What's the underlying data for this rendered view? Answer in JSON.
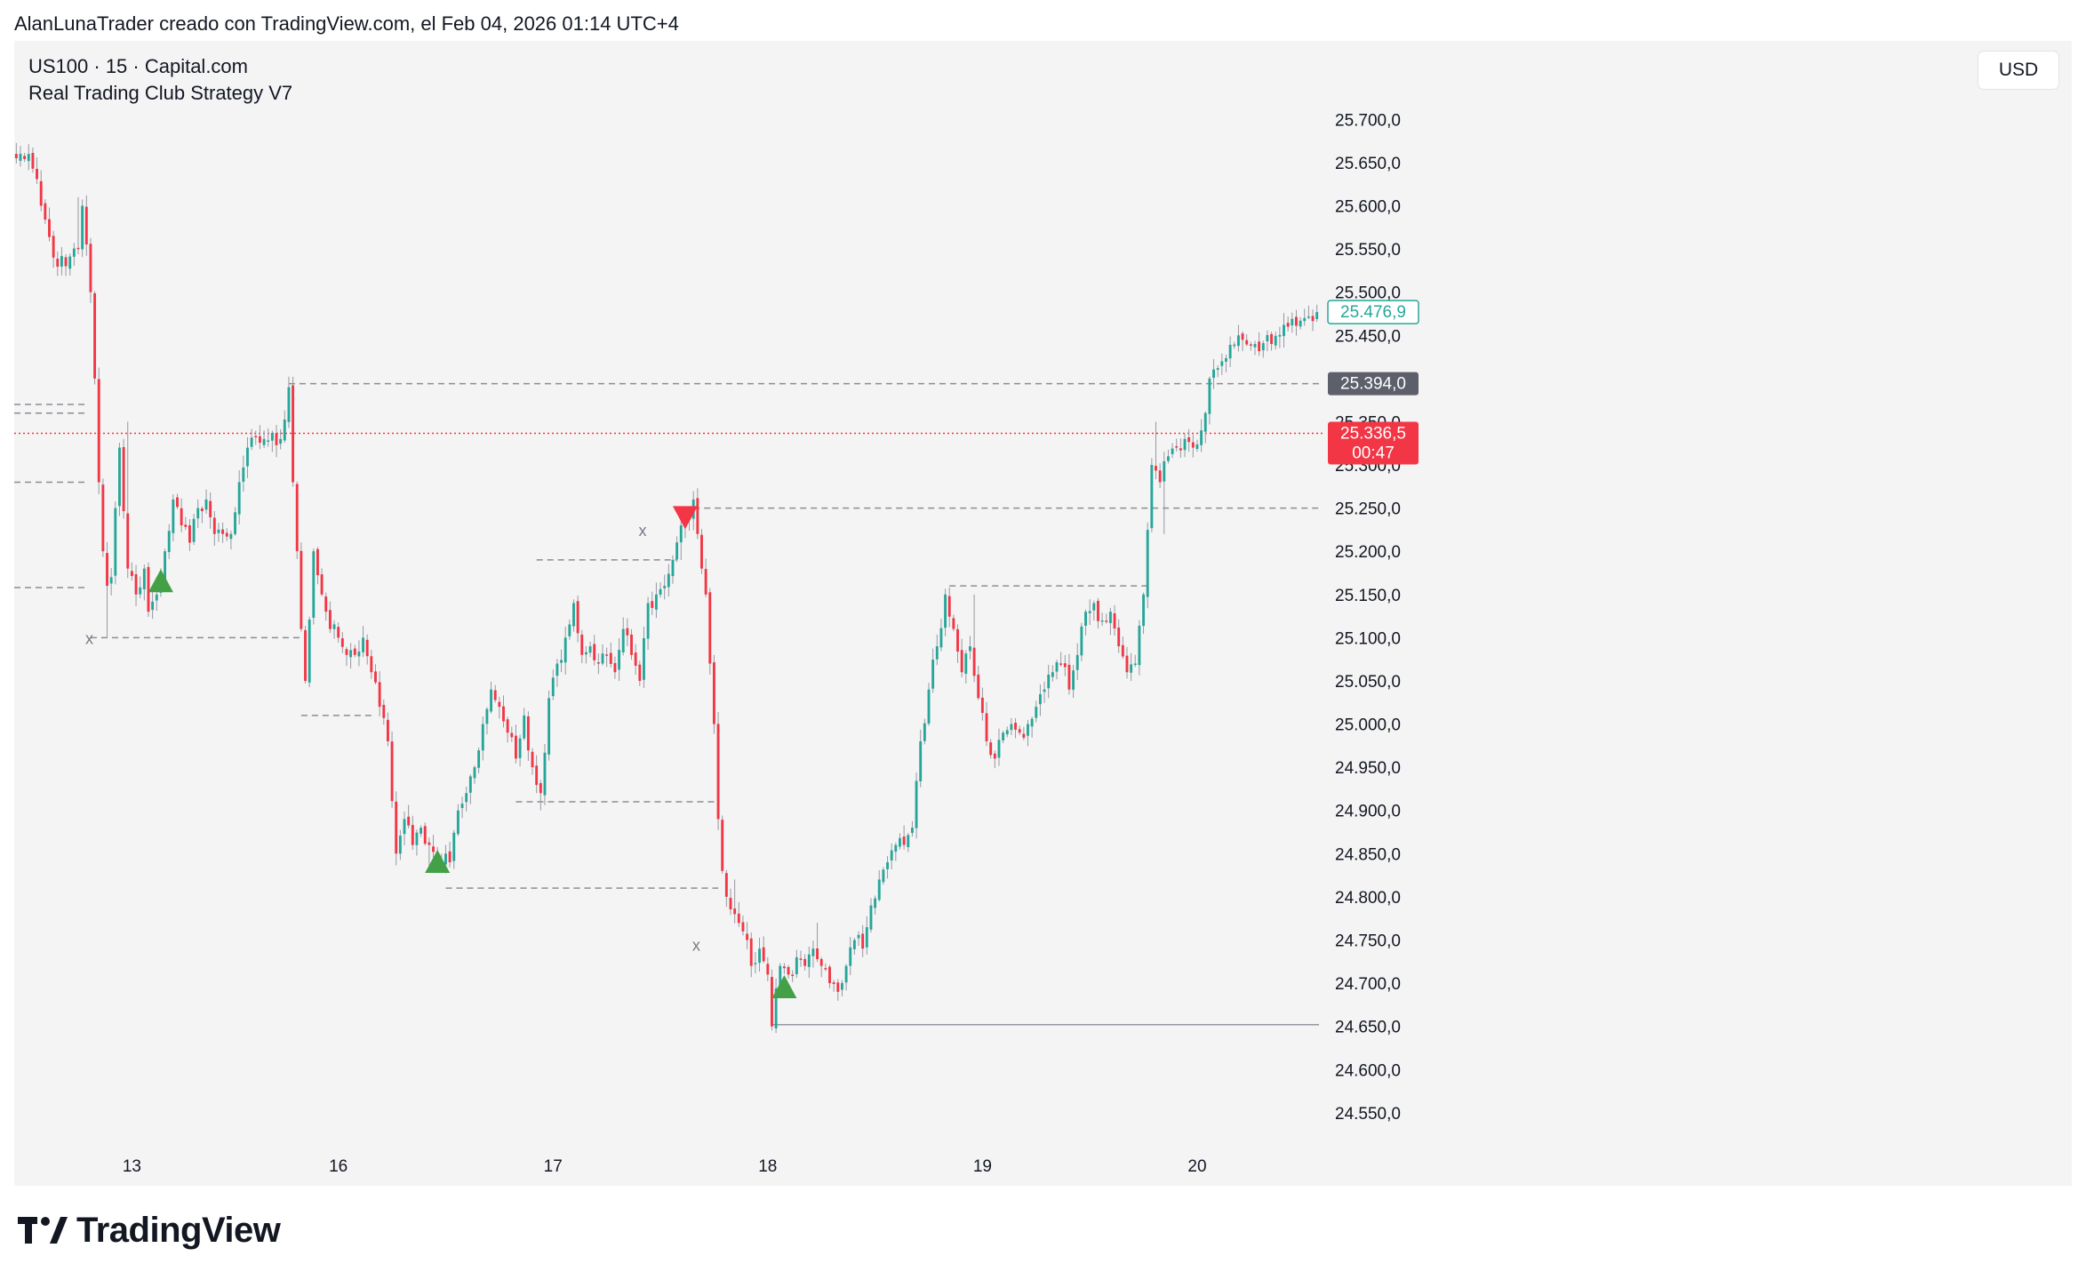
{
  "header": {
    "attribution": "AlanLunaTrader creado con TradingView.com, el Feb 04, 2026 01:14 UTC+4"
  },
  "legend": {
    "symbol": "US100 · 15 · Capital.com",
    "strategy": "Real Trading Club Strategy V7"
  },
  "currency": {
    "label": "USD"
  },
  "footer": {
    "brand": "TradingView",
    "logo_icon": "tradingview-logo-icon"
  },
  "colors": {
    "up": "#26a69a",
    "down": "#f23645",
    "background": "#f4f4f4",
    "last_price_box": "#f23645",
    "level_box": "#5d606b",
    "signal_up": "#43a047",
    "signal_down": "#f23645"
  },
  "chart_data": {
    "type": "candlestick",
    "x_ticks": [
      {
        "label": "13",
        "index": 28
      },
      {
        "label": "16",
        "index": 78
      },
      {
        "label": "17",
        "index": 130
      },
      {
        "label": "18",
        "index": 182
      },
      {
        "label": "19",
        "index": 234
      },
      {
        "label": "20",
        "index": 286
      }
    ],
    "y_ticks": [
      "25.700,0",
      "25.650,0",
      "25.600,0",
      "25.550,0",
      "25.500,0",
      "25.450,0",
      "25.400,0",
      "25.350,0",
      "25.300,0",
      "25.250,0",
      "25.200,0",
      "25.150,0",
      "25.100,0",
      "25.050,0",
      "25.000,0",
      "24.950,0",
      "24.900,0",
      "24.850,0",
      "24.800,0",
      "24.750,0",
      "24.700,0",
      "24.650,0",
      "24.600,0",
      "24.550,0"
    ],
    "y_tick_values": [
      25700,
      25650,
      25600,
      25550,
      25500,
      25450,
      25400,
      25350,
      25300,
      25250,
      25200,
      25150,
      25100,
      25050,
      25000,
      24950,
      24900,
      24850,
      24800,
      24750,
      24700,
      24650,
      24600,
      24550
    ],
    "y_range": [
      24520,
      25760
    ],
    "bars_count": 316,
    "close_anchors": [
      [
        0,
        25655
      ],
      [
        3,
        25660
      ],
      [
        6,
        25600
      ],
      [
        9,
        25540
      ],
      [
        12,
        25530
      ],
      [
        15,
        25550
      ],
      [
        16,
        25600
      ],
      [
        18,
        25500
      ],
      [
        19,
        25400
      ],
      [
        20,
        25280
      ],
      [
        21,
        25200
      ],
      [
        22,
        25160
      ],
      [
        23,
        25170
      ],
      [
        24,
        25250
      ],
      [
        25,
        25320
      ],
      [
        27,
        25180
      ],
      [
        29,
        25150
      ],
      [
        31,
        25180
      ],
      [
        32,
        25130
      ],
      [
        34,
        25150
      ],
      [
        36,
        25200
      ],
      [
        38,
        25260
      ],
      [
        40,
        25230
      ],
      [
        42,
        25210
      ],
      [
        44,
        25250
      ],
      [
        46,
        25260
      ],
      [
        48,
        25220
      ],
      [
        50,
        25220
      ],
      [
        52,
        25220
      ],
      [
        54,
        25280
      ],
      [
        56,
        25320
      ],
      [
        60,
        25330
      ],
      [
        64,
        25330
      ],
      [
        66,
        25390
      ],
      [
        67,
        25280
      ],
      [
        68,
        25200
      ],
      [
        69,
        25110
      ],
      [
        70,
        25050
      ],
      [
        72,
        25200
      ],
      [
        74,
        25150
      ],
      [
        76,
        25110
      ],
      [
        78,
        25100
      ],
      [
        80,
        25080
      ],
      [
        82,
        25080
      ],
      [
        84,
        25100
      ],
      [
        86,
        25060
      ],
      [
        88,
        25020
      ],
      [
        90,
        24980
      ],
      [
        92,
        24850
      ],
      [
        94,
        24890
      ],
      [
        96,
        24860
      ],
      [
        98,
        24880
      ],
      [
        100,
        24860
      ],
      [
        102,
        24840
      ],
      [
        104,
        24850
      ],
      [
        105,
        24840
      ],
      [
        107,
        24900
      ],
      [
        109,
        24920
      ],
      [
        111,
        24950
      ],
      [
        113,
        25000
      ],
      [
        115,
        25040
      ],
      [
        117,
        25020
      ],
      [
        119,
        24990
      ],
      [
        121,
        24960
      ],
      [
        123,
        25010
      ],
      [
        125,
        24950
      ],
      [
        127,
        24920
      ],
      [
        129,
        25030
      ],
      [
        131,
        25070
      ],
      [
        133,
        25100
      ],
      [
        135,
        25140
      ],
      [
        137,
        25080
      ],
      [
        139,
        25090
      ],
      [
        141,
        25070
      ],
      [
        143,
        25080
      ],
      [
        145,
        25060
      ],
      [
        147,
        25110
      ],
      [
        149,
        25080
      ],
      [
        151,
        25050
      ],
      [
        153,
        25140
      ],
      [
        155,
        25150
      ],
      [
        157,
        25160
      ],
      [
        159,
        25190
      ],
      [
        161,
        25230
      ],
      [
        163,
        25240
      ],
      [
        164,
        25260
      ],
      [
        165,
        25220
      ],
      [
        166,
        25180
      ],
      [
        167,
        25150
      ],
      [
        168,
        25070
      ],
      [
        169,
        25000
      ],
      [
        170,
        24890
      ],
      [
        171,
        24830
      ],
      [
        172,
        24800
      ],
      [
        174,
        24780
      ],
      [
        176,
        24760
      ],
      [
        178,
        24720
      ],
      [
        180,
        24740
      ],
      [
        182,
        24710
      ],
      [
        183,
        24650
      ],
      [
        185,
        24720
      ],
      [
        187,
        24710
      ],
      [
        189,
        24730
      ],
      [
        191,
        24720
      ],
      [
        193,
        24740
      ],
      [
        195,
        24720
      ],
      [
        197,
        24700
      ],
      [
        199,
        24690
      ],
      [
        201,
        24720
      ],
      [
        203,
        24750
      ],
      [
        205,
        24740
      ],
      [
        207,
        24790
      ],
      [
        209,
        24820
      ],
      [
        211,
        24840
      ],
      [
        213,
        24860
      ],
      [
        215,
        24860
      ],
      [
        217,
        24880
      ],
      [
        219,
        24980
      ],
      [
        221,
        25040
      ],
      [
        223,
        25090
      ],
      [
        225,
        25150
      ],
      [
        227,
        25110
      ],
      [
        229,
        25060
      ],
      [
        231,
        25090
      ],
      [
        233,
        25030
      ],
      [
        235,
        24980
      ],
      [
        237,
        24960
      ],
      [
        239,
        24990
      ],
      [
        241,
        25000
      ],
      [
        243,
        24990
      ],
      [
        245,
        25000
      ],
      [
        247,
        25020
      ],
      [
        249,
        25040
      ],
      [
        251,
        25060
      ],
      [
        253,
        25070
      ],
      [
        255,
        25040
      ],
      [
        257,
        25080
      ],
      [
        259,
        25130
      ],
      [
        261,
        25140
      ],
      [
        263,
        25120
      ],
      [
        265,
        25130
      ],
      [
        267,
        25090
      ],
      [
        269,
        25060
      ],
      [
        271,
        25070
      ],
      [
        273,
        25150
      ],
      [
        275,
        25300
      ],
      [
        277,
        25280
      ],
      [
        279,
        25310
      ],
      [
        281,
        25320
      ],
      [
        283,
        25330
      ],
      [
        285,
        25320
      ],
      [
        287,
        25340
      ],
      [
        288,
        25360
      ],
      [
        289,
        25400
      ],
      [
        292,
        25420
      ],
      [
        296,
        25450
      ],
      [
        300,
        25440
      ],
      [
        304,
        25440
      ],
      [
        308,
        25460
      ],
      [
        312,
        25470
      ],
      [
        315,
        25476.9
      ]
    ],
    "wick_spikes": [
      [
        8,
        25590
      ],
      [
        15,
        25610
      ],
      [
        22,
        25100
      ],
      [
        27,
        25350
      ],
      [
        44,
        25260
      ],
      [
        67,
        25380
      ],
      [
        100,
        24830
      ],
      [
        127,
        24900
      ],
      [
        138,
        25070
      ],
      [
        161,
        25190
      ],
      [
        165,
        25240
      ],
      [
        168,
        25140
      ],
      [
        174,
        24820
      ],
      [
        183,
        24660
      ],
      [
        194,
        24770
      ],
      [
        232,
        25150
      ],
      [
        236,
        24960
      ],
      [
        276,
        25350
      ],
      [
        278,
        25220
      ]
    ],
    "levels": [
      {
        "price": 25394.0,
        "label": "25.394,0",
        "style": "dashed",
        "from_index": 66,
        "box": true
      },
      {
        "price": 25250,
        "from_index": 164,
        "style": "dashed"
      },
      {
        "price": 25160,
        "from_index": 226,
        "to_index": 275,
        "style": "dashed"
      },
      {
        "price": 25190,
        "from_index": 126,
        "to_index": 160,
        "style": "dashed"
      },
      {
        "price": 25100,
        "from_index": 18,
        "to_index": 69,
        "style": "dashed"
      },
      {
        "price": 25010,
        "from_index": 69,
        "to_index": 86,
        "style": "dashed"
      },
      {
        "price": 24910,
        "from_index": 121,
        "to_index": 170,
        "style": "dashed"
      },
      {
        "price": 24810,
        "from_index": 104,
        "to_index": 170,
        "style": "dashed"
      },
      {
        "price": 25370,
        "from_index": -1,
        "to_index": 17,
        "style": "dashed"
      },
      {
        "price": 25360,
        "from_index": -1,
        "to_index": 17,
        "style": "dashed"
      },
      {
        "price": 25280,
        "from_index": -1,
        "to_index": 17,
        "style": "dashed"
      },
      {
        "price": 25158,
        "from_index": -1,
        "to_index": 17,
        "style": "dashed"
      },
      {
        "price": 24652,
        "from_index": 183,
        "style": "solid"
      }
    ],
    "cross_markers": [
      {
        "index": 18,
        "price": 25100,
        "label": "x"
      },
      {
        "index": 152,
        "price": 25225,
        "label": "x"
      },
      {
        "index": 165,
        "price": 24745,
        "label": "x"
      }
    ],
    "signals": [
      {
        "index": 35,
        "price": 25165,
        "direction": "up"
      },
      {
        "index": 102,
        "price": 24840,
        "direction": "up"
      },
      {
        "index": 162,
        "price": 25240,
        "direction": "down"
      },
      {
        "index": 186,
        "price": 24695,
        "direction": "up"
      }
    ],
    "last_price": {
      "price": 25476.9,
      "label": "25.476,9"
    },
    "current_price": {
      "price": 25336.5,
      "label": "25.336,5",
      "countdown": "00:47"
    }
  }
}
